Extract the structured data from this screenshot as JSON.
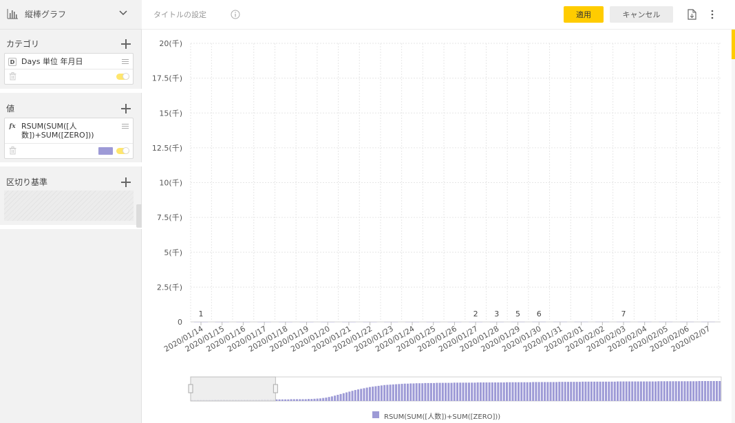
{
  "sidebar": {
    "chart_type_label": "縦棒グラフ",
    "category": {
      "label": "カテゴリ",
      "field": {
        "badge": "D",
        "text": "Days 単位 年月日"
      }
    },
    "value": {
      "label": "値",
      "field": {
        "badge": "fx",
        "text_line1": "RSUM(SUM([人",
        "text_line2": "数])+SUM([ZERO]))"
      },
      "series_color": "#9d9ad6"
    },
    "breakdown": {
      "label": "区切り基準"
    }
  },
  "topbar": {
    "title_setting": "タイトルの設定",
    "apply_label": "適用",
    "cancel_label": "キャンセル"
  },
  "colors": {
    "accent": "#ffcc00",
    "series": "#9d9ad6"
  },
  "chart_data": {
    "type": "bar",
    "categories": [
      "2020/01/14",
      "2020/01/15",
      "2020/01/16",
      "2020/01/17",
      "2020/01/18",
      "2020/01/19",
      "2020/01/20",
      "2020/01/21",
      "2020/01/22",
      "2020/01/23",
      "2020/01/24",
      "2020/01/25",
      "2020/01/26",
      "2020/01/27",
      "2020/01/28",
      "2020/01/29",
      "2020/01/30",
      "2020/01/31",
      "2020/02/01",
      "2020/02/02",
      "2020/02/03",
      "2020/02/04",
      "2020/02/05",
      "2020/02/06",
      "2020/02/07"
    ],
    "series": [
      {
        "name": "RSUM(SUM([人数])+SUM([ZERO]))",
        "values": [
          1,
          1,
          1,
          1,
          1,
          1,
          1,
          1,
          1,
          1,
          1,
          1,
          1,
          2,
          3,
          5,
          6,
          6,
          6,
          6,
          7,
          7,
          7,
          7,
          7
        ],
        "data_labels": [
          "1",
          "",
          "",
          "",
          "",
          "",
          "",
          "",
          "",
          "",
          "",
          "",
          "",
          "2",
          "3",
          "5",
          "6",
          "",
          "",
          "",
          "7",
          "",
          "",
          "",
          ""
        ]
      }
    ],
    "y_ticks": [
      "0",
      "2.5(千)",
      "5(千)",
      "7.5(千)",
      "10(千)",
      "12.5(千)",
      "15(千)",
      "17.5(千)",
      "20(千)"
    ],
    "ylim": [
      0,
      20000
    ],
    "grid": true,
    "legend": "bottom-center",
    "overview": {
      "selected_range": [
        0,
        0.16
      ],
      "bar_levels": [
        0.05,
        0.05,
        0.06,
        0.06,
        0.06,
        0.06,
        0.06,
        0.06,
        0.07,
        0.07,
        0.07,
        0.07,
        0.07,
        0.07,
        0.07,
        0.07,
        0.07,
        0.07,
        0.07,
        0.07,
        0.07,
        0.07,
        0.07,
        0.07,
        0.08,
        0.08,
        0.08,
        0.08,
        0.08,
        0.08,
        0.08,
        0.08,
        0.08,
        0.08,
        0.09,
        0.09,
        0.09,
        0.09,
        0.09,
        0.09,
        0.1,
        0.1,
        0.11,
        0.12,
        0.13,
        0.15,
        0.17,
        0.2,
        0.23,
        0.27,
        0.31,
        0.35,
        0.39,
        0.43,
        0.47,
        0.51,
        0.55,
        0.58,
        0.61,
        0.64,
        0.67,
        0.7,
        0.72,
        0.74,
        0.76,
        0.78,
        0.8,
        0.81,
        0.82,
        0.83,
        0.84,
        0.85,
        0.86,
        0.87,
        0.87,
        0.88,
        0.88,
        0.89,
        0.89,
        0.89,
        0.9,
        0.9,
        0.9,
        0.9,
        0.91,
        0.91,
        0.91,
        0.91,
        0.91,
        0.91,
        0.92,
        0.92,
        0.92,
        0.92,
        0.92,
        0.92,
        0.92,
        0.92,
        0.93,
        0.93,
        0.93,
        0.93,
        0.93,
        0.93,
        0.93,
        0.93,
        0.93,
        0.93,
        0.94,
        0.94,
        0.94,
        0.94,
        0.94,
        0.94,
        0.94,
        0.94,
        0.94,
        0.95,
        0.95,
        0.95,
        0.95,
        0.95,
        0.95,
        0.95,
        0.95,
        0.95,
        0.96,
        0.96,
        0.96,
        0.96,
        0.96,
        0.96,
        0.96,
        0.96,
        0.97,
        0.97,
        0.97,
        0.97,
        0.97,
        0.97,
        0.97,
        0.97,
        0.97,
        0.97,
        0.97,
        0.97,
        0.98,
        0.98,
        0.98,
        0.98,
        0.98,
        0.98,
        0.98,
        0.98,
        0.98,
        0.98,
        0.98,
        0.98,
        0.98,
        0.98,
        0.99,
        0.99,
        0.99,
        0.99,
        0.99,
        0.99,
        0.99,
        0.99,
        0.99,
        0.99,
        0.99,
        0.99,
        0.99,
        0.99,
        1.0,
        1.0,
        1.0,
        1.0,
        1.0,
        1.0,
        1.0,
        1.0
      ]
    }
  }
}
